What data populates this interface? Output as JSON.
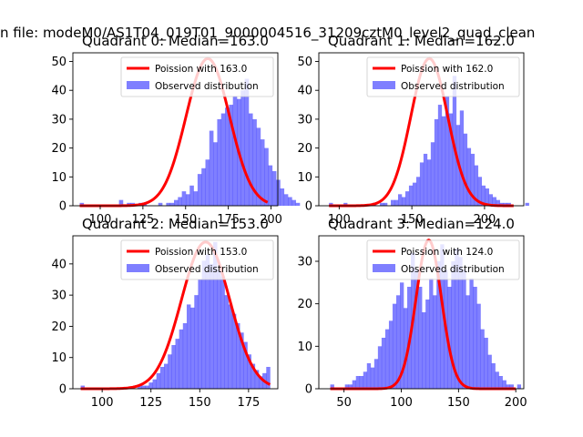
{
  "figure": {
    "suptitle": "n file: modeM0/AS1T04_019T01_9000004516_31209cztM0_level2_quad_clean",
    "colors": {
      "bar": "#0000ff",
      "curve": "#ff0000",
      "axis": "#000000",
      "background": "#ffffff"
    }
  },
  "chart_data": [
    {
      "type": "bar",
      "title": "Quadrant 0: Median=163.0",
      "xlabel": "",
      "ylabel": "",
      "xlim": [
        84,
        204
      ],
      "ylim": [
        0,
        53
      ],
      "xticks": [
        100,
        125,
        150,
        175,
        200
      ],
      "yticks": [
        0,
        10,
        20,
        30,
        40,
        50
      ],
      "legend": {
        "placement": "upper right",
        "entries": [
          "Poission with 163.0",
          "Observed distribution"
        ]
      },
      "series": [
        {
          "name": "Observed distribution",
          "x_start": 88,
          "bin_width": 2.3,
          "values": [
            1,
            0,
            0,
            0,
            0,
            0,
            0,
            0,
            0,
            0,
            2,
            0,
            1,
            1,
            0,
            1,
            1,
            0,
            0,
            0,
            1,
            0,
            1,
            1,
            2,
            3,
            5,
            4,
            7,
            5,
            11,
            13,
            16,
            26,
            22,
            30,
            32,
            34,
            35,
            38,
            37,
            40,
            44,
            32,
            30,
            27,
            23,
            20,
            14,
            12,
            9,
            6,
            4,
            3,
            2,
            1
          ]
        },
        {
          "name": "Poission with 163.0",
          "lambda": 163.0,
          "peak": 51,
          "x_range": [
            88,
            198
          ]
        }
      ]
    },
    {
      "type": "bar",
      "title": "Quadrant 1: Median=162.0",
      "xlabel": "",
      "ylabel": "",
      "xlim": [
        86,
        227
      ],
      "ylim": [
        0,
        53
      ],
      "xticks": [
        100,
        150,
        200
      ],
      "yticks": [
        0,
        10,
        20,
        30,
        40,
        50
      ],
      "legend": {
        "placement": "upper right",
        "entries": [
          "Poission with 162.0",
          "Observed distribution"
        ]
      },
      "series": [
        {
          "name": "Observed distribution",
          "x_start": 93,
          "bin_width": 2.5,
          "values": [
            1,
            0,
            0,
            0,
            1,
            0,
            0,
            0,
            0,
            0,
            0,
            0,
            1,
            0,
            1,
            1,
            0,
            2,
            2,
            4,
            3,
            5,
            7,
            8,
            10,
            15,
            18,
            16,
            22,
            30,
            35,
            31,
            38,
            32,
            45,
            28,
            33,
            25,
            20,
            18,
            14,
            10,
            7,
            6,
            4,
            3,
            2,
            1,
            1,
            1,
            0,
            0,
            0,
            0,
            1
          ]
        },
        {
          "name": "Poission with 162.0",
          "lambda": 162.0,
          "peak": 51,
          "x_range": [
            93,
            220
          ]
        }
      ]
    },
    {
      "type": "bar",
      "title": "Quadrant 2: Median=153.0",
      "xlabel": "",
      "ylabel": "",
      "xlim": [
        85,
        190
      ],
      "ylim": [
        0,
        49
      ],
      "xticks": [
        100,
        125,
        150,
        175
      ],
      "yticks": [
        0,
        10,
        20,
        30,
        40
      ],
      "legend": {
        "placement": "upper right",
        "entries": [
          "Poission with 153.0",
          "Observed distribution"
        ]
      },
      "series": [
        {
          "name": "Observed distribution",
          "x_start": 89,
          "bin_width": 1.94,
          "values": [
            1,
            0,
            0,
            0,
            0,
            0,
            0,
            0,
            0,
            0,
            0,
            0,
            0,
            0,
            0,
            1,
            1,
            1,
            2,
            3,
            5,
            7,
            8,
            11,
            14,
            16,
            19,
            21,
            27,
            26,
            30,
            35,
            41,
            43,
            40,
            47,
            38,
            36,
            30,
            27,
            24,
            21,
            18,
            15,
            11,
            8,
            6,
            4,
            5,
            7
          ]
        },
        {
          "name": "Poission with 153.0",
          "lambda": 153.0,
          "peak": 47,
          "x_range": [
            89,
            186
          ]
        }
      ]
    },
    {
      "type": "bar",
      "title": "Quadrant 3: Median=124.0",
      "xlabel": "",
      "ylabel": "",
      "xlim": [
        28,
        207
      ],
      "ylim": [
        0,
        36
      ],
      "xticks": [
        50,
        100,
        150,
        200
      ],
      "yticks": [
        0,
        10,
        20,
        30
      ],
      "legend": {
        "placement": "upper right",
        "entries": [
          "Poission with 124.0",
          "Observed distribution"
        ]
      },
      "series": [
        {
          "name": "Observed distribution",
          "x_start": 38,
          "bin_width": 3.2,
          "values": [
            1,
            0,
            0,
            0,
            1,
            1,
            2,
            3,
            3,
            4,
            6,
            5,
            7,
            10,
            12,
            14,
            16,
            20,
            22,
            25,
            19,
            24,
            32,
            28,
            24,
            18,
            21,
            26,
            22,
            30,
            34,
            28,
            24,
            30,
            33,
            31,
            28,
            22,
            26,
            24,
            20,
            14,
            12,
            8,
            6,
            4,
            3,
            2,
            1,
            1,
            0,
            1
          ]
        },
        {
          "name": "Poission with 124.0",
          "lambda": 124.0,
          "peak": 35,
          "x_range": [
            38,
            200
          ]
        }
      ]
    }
  ]
}
